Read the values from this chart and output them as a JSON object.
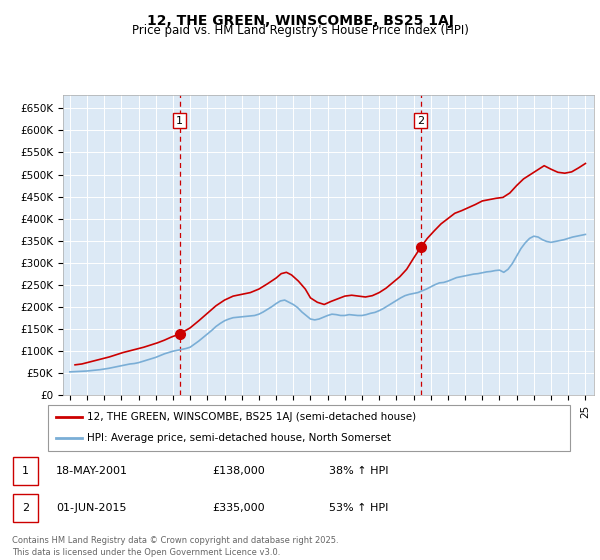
{
  "title": "12, THE GREEN, WINSCOMBE, BS25 1AJ",
  "subtitle": "Price paid vs. HM Land Registry's House Price Index (HPI)",
  "background_color": "#dce9f5",
  "plot_bg_color": "#dce9f5",
  "ylabel_ticks": [
    "£0",
    "£50K",
    "£100K",
    "£150K",
    "£200K",
    "£250K",
    "£300K",
    "£350K",
    "£400K",
    "£450K",
    "£500K",
    "£550K",
    "£600K",
    "£650K"
  ],
  "ytick_values": [
    0,
    50000,
    100000,
    150000,
    200000,
    250000,
    300000,
    350000,
    400000,
    450000,
    500000,
    550000,
    600000,
    650000
  ],
  "ylim": [
    0,
    680000
  ],
  "xlim_start": 1994.6,
  "xlim_end": 2025.5,
  "xtick_years": [
    1995,
    1996,
    1997,
    1998,
    1999,
    2000,
    2001,
    2002,
    2003,
    2004,
    2005,
    2006,
    2007,
    2008,
    2009,
    2010,
    2011,
    2012,
    2013,
    2014,
    2015,
    2016,
    2017,
    2018,
    2019,
    2020,
    2021,
    2022,
    2023,
    2024,
    2025
  ],
  "legend_line1": "12, THE GREEN, WINSCOMBE, BS25 1AJ (semi-detached house)",
  "legend_line2": "HPI: Average price, semi-detached house, North Somerset",
  "line1_color": "#cc0000",
  "line2_color": "#7aaed6",
  "annotation1": {
    "label": "1",
    "date_str": "18-MAY-2001",
    "price": "£138,000",
    "hpi_text": "38% ↑ HPI",
    "x_year": 2001.38,
    "y_val": 138000
  },
  "annotation2": {
    "label": "2",
    "date_str": "01-JUN-2015",
    "price": "£335,000",
    "hpi_text": "53% ↑ HPI",
    "x_year": 2015.42,
    "y_val": 335000
  },
  "vline_color": "#cc0000",
  "footer": "Contains HM Land Registry data © Crown copyright and database right 2025.\nThis data is licensed under the Open Government Licence v3.0.",
  "hpi_data": {
    "years": [
      1995.0,
      1995.25,
      1995.5,
      1995.75,
      1996.0,
      1996.25,
      1996.5,
      1996.75,
      1997.0,
      1997.25,
      1997.5,
      1997.75,
      1998.0,
      1998.25,
      1998.5,
      1998.75,
      1999.0,
      1999.25,
      1999.5,
      1999.75,
      2000.0,
      2000.25,
      2000.5,
      2000.75,
      2001.0,
      2001.25,
      2001.5,
      2001.75,
      2002.0,
      2002.25,
      2002.5,
      2002.75,
      2003.0,
      2003.25,
      2003.5,
      2003.75,
      2004.0,
      2004.25,
      2004.5,
      2004.75,
      2005.0,
      2005.25,
      2005.5,
      2005.75,
      2006.0,
      2006.25,
      2006.5,
      2006.75,
      2007.0,
      2007.25,
      2007.5,
      2007.75,
      2008.0,
      2008.25,
      2008.5,
      2008.75,
      2009.0,
      2009.25,
      2009.5,
      2009.75,
      2010.0,
      2010.25,
      2010.5,
      2010.75,
      2011.0,
      2011.25,
      2011.5,
      2011.75,
      2012.0,
      2012.25,
      2012.5,
      2012.75,
      2013.0,
      2013.25,
      2013.5,
      2013.75,
      2014.0,
      2014.25,
      2014.5,
      2014.75,
      2015.0,
      2015.25,
      2015.5,
      2015.75,
      2016.0,
      2016.25,
      2016.5,
      2016.75,
      2017.0,
      2017.25,
      2017.5,
      2017.75,
      2018.0,
      2018.25,
      2018.5,
      2018.75,
      2019.0,
      2019.25,
      2019.5,
      2019.75,
      2020.0,
      2020.25,
      2020.5,
      2020.75,
      2021.0,
      2021.25,
      2021.5,
      2021.75,
      2022.0,
      2022.25,
      2022.5,
      2022.75,
      2023.0,
      2023.25,
      2023.5,
      2023.75,
      2024.0,
      2024.25,
      2024.5,
      2024.75,
      2025.0
    ],
    "values": [
      52000,
      52500,
      53000,
      53500,
      54000,
      55000,
      56000,
      57000,
      58500,
      60000,
      62000,
      64000,
      66000,
      68000,
      70000,
      71000,
      73000,
      76000,
      79000,
      82000,
      85000,
      89000,
      93000,
      96000,
      99000,
      101000,
      103000,
      105000,
      108000,
      115000,
      122000,
      130000,
      138000,
      146000,
      155000,
      162000,
      168000,
      172000,
      175000,
      176000,
      177000,
      178000,
      179000,
      180000,
      183000,
      188000,
      194000,
      200000,
      207000,
      213000,
      215000,
      210000,
      205000,
      198000,
      188000,
      180000,
      172000,
      170000,
      172000,
      176000,
      180000,
      183000,
      182000,
      180000,
      180000,
      182000,
      181000,
      180000,
      180000,
      182000,
      185000,
      187000,
      191000,
      196000,
      202000,
      208000,
      214000,
      220000,
      225000,
      228000,
      230000,
      232000,
      236000,
      240000,
      245000,
      250000,
      254000,
      255000,
      258000,
      262000,
      266000,
      268000,
      270000,
      272000,
      274000,
      275000,
      277000,
      279000,
      280000,
      282000,
      283000,
      278000,
      285000,
      298000,
      315000,
      332000,
      345000,
      355000,
      360000,
      358000,
      352000,
      348000,
      346000,
      348000,
      350000,
      352000,
      355000,
      358000,
      360000,
      362000,
      364000
    ]
  },
  "price_data": {
    "years": [
      1995.3,
      1995.7,
      1996.1,
      1996.5,
      1996.9,
      1997.3,
      1997.7,
      1998.1,
      1998.5,
      1998.9,
      1999.3,
      1999.7,
      2000.1,
      2000.5,
      2000.9,
      2001.38,
      2002.0,
      2002.5,
      2003.0,
      2003.5,
      2004.0,
      2004.5,
      2005.0,
      2005.5,
      2006.0,
      2006.5,
      2007.0,
      2007.3,
      2007.6,
      2007.9,
      2008.3,
      2008.7,
      2009.0,
      2009.4,
      2009.8,
      2010.2,
      2010.6,
      2011.0,
      2011.4,
      2011.8,
      2012.2,
      2012.6,
      2013.0,
      2013.4,
      2013.8,
      2014.2,
      2014.6,
      2015.0,
      2015.42,
      2015.8,
      2016.2,
      2016.6,
      2017.0,
      2017.4,
      2017.8,
      2018.2,
      2018.6,
      2019.0,
      2019.4,
      2019.8,
      2020.2,
      2020.6,
      2021.0,
      2021.4,
      2021.8,
      2022.2,
      2022.6,
      2023.0,
      2023.4,
      2023.8,
      2024.2,
      2024.6,
      2025.0
    ],
    "values": [
      68000,
      70000,
      74000,
      78000,
      82000,
      86000,
      91000,
      96000,
      100000,
      104000,
      108000,
      113000,
      118000,
      124000,
      131000,
      138000,
      152000,
      168000,
      185000,
      202000,
      215000,
      224000,
      228000,
      232000,
      240000,
      252000,
      265000,
      275000,
      278000,
      272000,
      258000,
      240000,
      220000,
      210000,
      205000,
      212000,
      218000,
      224000,
      226000,
      224000,
      222000,
      225000,
      232000,
      242000,
      255000,
      268000,
      285000,
      310000,
      335000,
      355000,
      372000,
      388000,
      400000,
      412000,
      418000,
      425000,
      432000,
      440000,
      443000,
      446000,
      448000,
      458000,
      475000,
      490000,
      500000,
      510000,
      520000,
      512000,
      505000,
      503000,
      506000,
      515000,
      525000
    ]
  }
}
